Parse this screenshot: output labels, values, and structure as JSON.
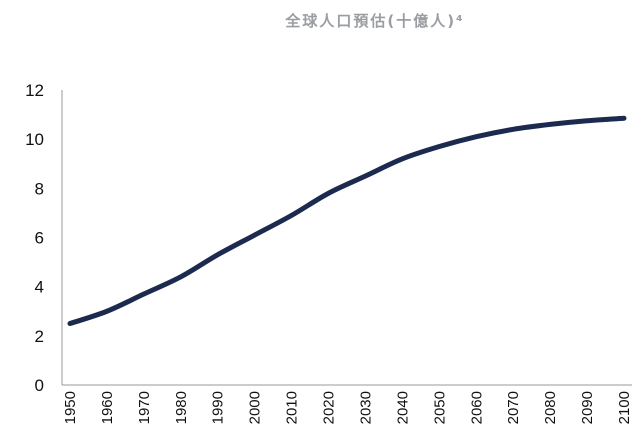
{
  "chart_data": {
    "type": "line",
    "title": "全球人口預估(十億人)⁴",
    "xlabel": "",
    "ylabel": "",
    "x": [
      1950,
      1960,
      1970,
      1980,
      1990,
      2000,
      2010,
      2020,
      2030,
      2040,
      2050,
      2060,
      2070,
      2080,
      2090,
      2100
    ],
    "x_tick_labels": [
      "1950",
      "1960",
      "1970",
      "1980",
      "1990",
      "2000",
      "2010",
      "2020",
      "2030",
      "2040",
      "2050",
      "2060",
      "2070",
      "2080",
      "2090",
      "2100"
    ],
    "ylim": [
      0,
      12
    ],
    "y_ticks": [
      0,
      2,
      4,
      6,
      8,
      10,
      12
    ],
    "y_tick_labels": [
      "0",
      "2",
      "4",
      "6",
      "8",
      "10",
      "12"
    ],
    "grid": false,
    "legend": "none",
    "series": [
      {
        "values": [
          2.5,
          3.0,
          3.7,
          4.4,
          5.3,
          6.1,
          6.9,
          7.8,
          8.5,
          9.2,
          9.7,
          10.1,
          10.4,
          10.6,
          10.75,
          10.85
        ],
        "color": "#1c2a4f"
      }
    ]
  }
}
